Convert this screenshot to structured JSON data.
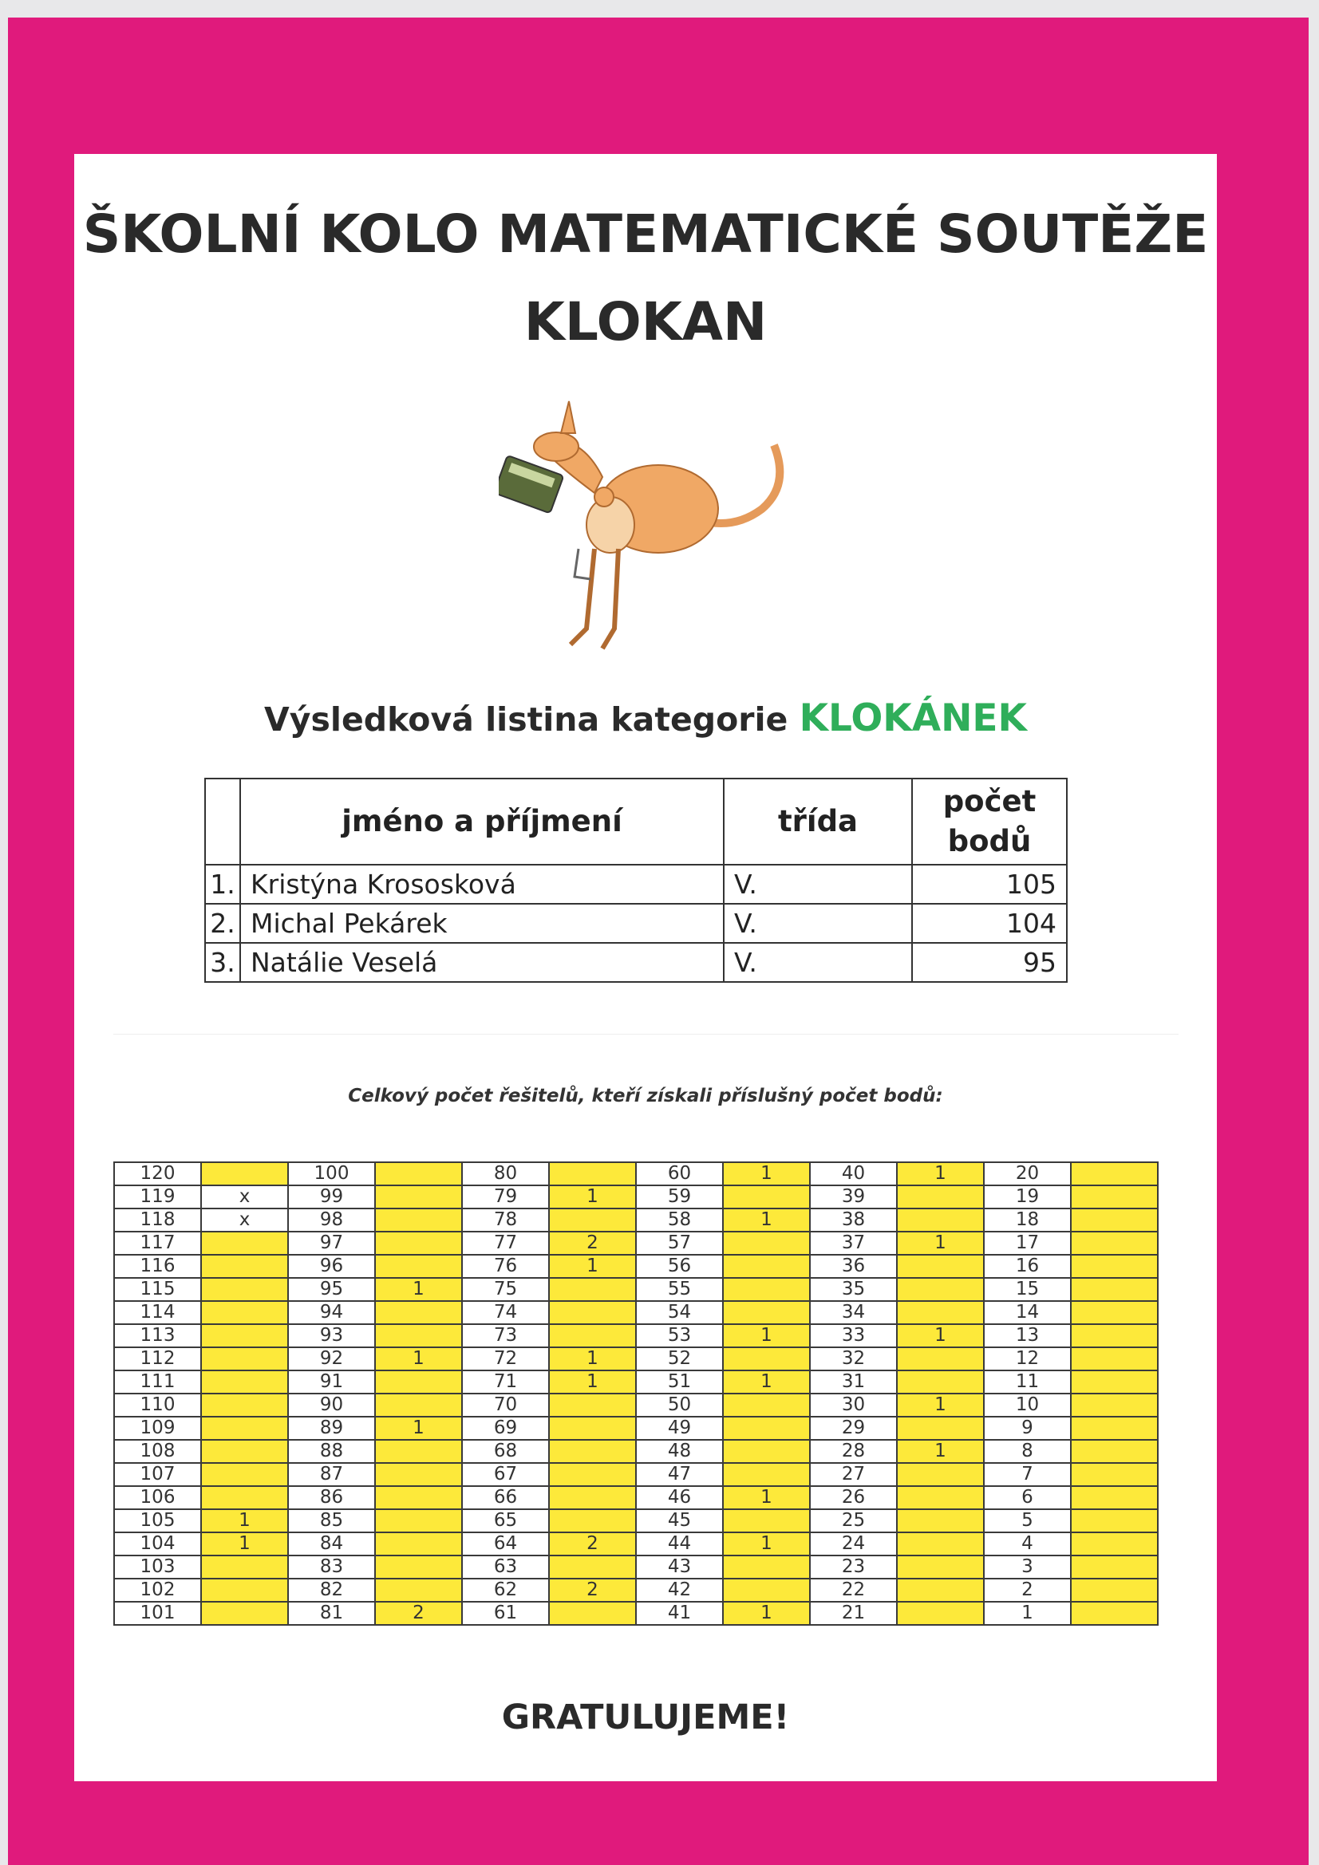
{
  "header": {
    "title_line1": "ŠKOLNÍ KOLO MATEMATICKÉ SOUTĚŽE",
    "title_line2": "KLOKAN"
  },
  "subtitle": {
    "prefix": "Výsledková listina kategorie",
    "category": "KLOKÁNEK"
  },
  "results": {
    "headers": {
      "rank": "",
      "name": "jméno a příjmení",
      "class": "třída",
      "points": "počet bodů"
    },
    "rows": [
      {
        "rank": "1.",
        "name": "Kristýna Krososková",
        "class": "V.",
        "points": "105"
      },
      {
        "rank": "2.",
        "name": "Michal Pekárek",
        "class": "V.",
        "points": "104"
      },
      {
        "rank": "3.",
        "name": "Natálie Veselá",
        "class": "V.",
        "points": "95"
      }
    ]
  },
  "grid": {
    "caption": "Celkový počet řešitelů, kteří získali příslušný počet bodů:",
    "columns": [
      {
        "scores": [
          "120",
          "119",
          "118",
          "117",
          "116",
          "115",
          "114",
          "113",
          "112",
          "111",
          "110",
          "109",
          "108",
          "107",
          "106",
          "105",
          "104",
          "103",
          "102",
          "101"
        ],
        "counts": [
          "",
          "x",
          "x",
          "",
          "",
          "",
          "",
          "",
          "",
          "",
          "",
          "",
          "",
          "",
          "",
          "1",
          "1",
          "",
          "",
          ""
        ]
      },
      {
        "scores": [
          "100",
          "99",
          "98",
          "97",
          "96",
          "95",
          "94",
          "93",
          "92",
          "91",
          "90",
          "89",
          "88",
          "87",
          "86",
          "85",
          "84",
          "83",
          "82",
          "81"
        ],
        "counts": [
          "",
          "",
          "",
          "",
          "",
          "1",
          "",
          "",
          "1",
          "",
          "",
          "1",
          "",
          "",
          "",
          "",
          "",
          "",
          "",
          "2"
        ]
      },
      {
        "scores": [
          "80",
          "79",
          "78",
          "77",
          "76",
          "75",
          "74",
          "73",
          "72",
          "71",
          "70",
          "69",
          "68",
          "67",
          "66",
          "65",
          "64",
          "63",
          "62",
          "61"
        ],
        "counts": [
          "",
          "1",
          "",
          "2",
          "1",
          "",
          "",
          "",
          "1",
          "1",
          "",
          "",
          "",
          "",
          "",
          "",
          "2",
          "",
          "2",
          ""
        ]
      },
      {
        "scores": [
          "60",
          "59",
          "58",
          "57",
          "56",
          "55",
          "54",
          "53",
          "52",
          "51",
          "50",
          "49",
          "48",
          "47",
          "46",
          "45",
          "44",
          "43",
          "42",
          "41"
        ],
        "counts": [
          "1",
          "",
          "1",
          "",
          "",
          "",
          "",
          "1",
          "",
          "1",
          "",
          "",
          "",
          "",
          "1",
          "",
          "1",
          "",
          "",
          "1"
        ]
      },
      {
        "scores": [
          "40",
          "39",
          "38",
          "37",
          "36",
          "35",
          "34",
          "33",
          "32",
          "31",
          "30",
          "29",
          "28",
          "27",
          "26",
          "25",
          "24",
          "23",
          "22",
          "21"
        ],
        "counts": [
          "1",
          "",
          "",
          "1",
          "",
          "",
          "",
          "1",
          "",
          "",
          "1",
          "",
          "1",
          "",
          "",
          "",
          "",
          "",
          "",
          ""
        ]
      },
      {
        "scores": [
          "20",
          "19",
          "18",
          "17",
          "16",
          "15",
          "14",
          "13",
          "12",
          "11",
          "10",
          "9",
          "8",
          "7",
          "6",
          "5",
          "4",
          "3",
          "2",
          "1"
        ],
        "counts": [
          "",
          "",
          "",
          "",
          "",
          "",
          "",
          "",
          "",
          "",
          "",
          "",
          "",
          "",
          "",
          "",
          "",
          "",
          "",
          ""
        ]
      }
    ]
  },
  "footer": {
    "congrats": "GRATULUJEME!"
  },
  "colors": {
    "border": "#e01a7c",
    "category": "#2fae5a",
    "highlight": "#fde93a"
  },
  "illustration": {
    "icon": "kangaroo-with-calculator"
  }
}
